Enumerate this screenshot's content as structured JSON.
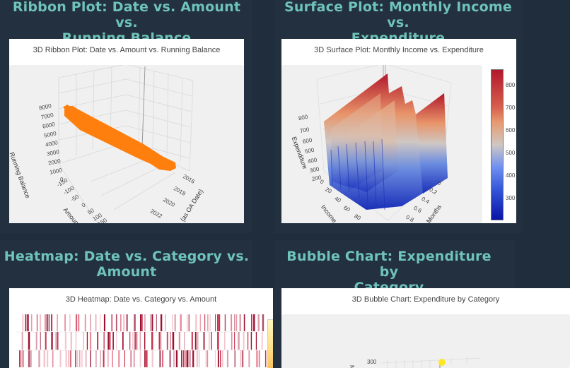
{
  "panels": [
    {
      "heading": "Ribbon Plot: Date vs. Amount vs. Running Balance",
      "heading_lines": [
        "Ribbon Plot: Date vs. Amount vs.",
        "Running Balance"
      ],
      "plot_title": "3D Ribbon Plot: Date vs. Amount vs. Running Balance"
    },
    {
      "heading": "Surface Plot: Monthly Income vs. Expenditure",
      "heading_lines": [
        "Surface Plot: Monthly Income vs.",
        "Expenditure"
      ],
      "plot_title": "3D Surface Plot: Monthly Income vs. Expenditure"
    },
    {
      "heading": "Heatmap: Date vs. Category vs. Amount",
      "heading_lines": [
        "Heatmap: Date vs. Category vs.",
        "Amount"
      ],
      "plot_title": "3D Heatmap: Date vs. Category vs. Amount"
    },
    {
      "heading": "Bubble Chart: Expenditure by Category",
      "heading_lines": [
        "Bubble Chart: Expenditure by",
        "Category"
      ],
      "plot_title": "3D Bubble Chart: Expenditure by Category"
    }
  ],
  "colors": {
    "page_bg": "#1f2d3d",
    "heading": "#6fc3b8",
    "ribbon": "#ff7f0e",
    "bubble": "#fde725"
  },
  "chart_data": [
    {
      "type": "ribbon3d",
      "title": "3D Ribbon Plot: Date vs. Amount vs. Running Balance",
      "axes": {
        "z": {
          "label": "Running Balance",
          "ticks": [
            "0",
            "1000",
            "2000",
            "3000",
            "4000",
            "5000",
            "6000",
            "7000",
            "8000"
          ],
          "range": [
            0,
            8000
          ]
        },
        "y": {
          "label": "Amount",
          "ticks": [
            "-150",
            "-100",
            "-50",
            "0",
            "50",
            "100",
            "150"
          ]
        },
        "x": {
          "label": "Date (as OA Date)",
          "label_visible": "(as OA Date)",
          "ticks": [
            "2016",
            "2018",
            "2020",
            "2022"
          ]
        }
      },
      "series": [
        {
          "name": "Running Balance",
          "color": "#ff7f0e",
          "trend": "decreasing from ~7500 (early) to ~500 (late)"
        }
      ]
    },
    {
      "type": "surface3d",
      "title": "3D Surface Plot: Monthly Income vs. Expenditure",
      "axes": {
        "z": {
          "label": "Expenditure",
          "ticks": [
            "200",
            "300",
            "400",
            "500",
            "600",
            "700",
            "800"
          ]
        },
        "x": {
          "label": "Income",
          "ticks": [
            "0",
            "20",
            "40",
            "60",
            "80"
          ]
        },
        "y": {
          "label": "Months",
          "ticks": [
            "0",
            "0.2",
            "0.4",
            "0.6",
            "0.8"
          ]
        }
      },
      "colorbar": {
        "ticks": [
          "300",
          "400",
          "500",
          "600",
          "700",
          "800"
        ],
        "range": [
          230,
          870
        ],
        "colorscale": "RdBu (blue low, red high)"
      }
    },
    {
      "type": "heatmap",
      "title": "3D Heatmap: Date vs. Category vs. Amount",
      "rows_visible": 3,
      "colorscale": "white to dark red, colorbar yellow-orange (partially visible)"
    },
    {
      "type": "scatter3d",
      "title": "3D Bubble Chart: Expenditure by Category",
      "axes": {
        "z": {
          "label": "Nu...",
          "ticks": [
            "300"
          ]
        }
      },
      "points_visible": [
        {
          "z": 300,
          "color": "#fde725"
        }
      ]
    }
  ],
  "ticks": {
    "ribbon_z": [
      "8000",
      "7000",
      "6000",
      "5000",
      "4000",
      "3000",
      "2000",
      "1000",
      "0"
    ],
    "ribbon_y": [
      "-150",
      "-100",
      "-50",
      "0",
      "50",
      "100",
      "150"
    ],
    "ribbon_x": [
      "2016",
      "2018",
      "2020",
      "2022"
    ],
    "ribbon_z_label": "Running Balance",
    "ribbon_y_label": "Amount",
    "ribbon_x_label": "(as OA Date)",
    "surface_z": [
      "800",
      "700",
      "600",
      "500",
      "400",
      "300",
      "200"
    ],
    "surface_x": [
      "0",
      "20",
      "40",
      "60",
      "80"
    ],
    "surface_y": [
      "0",
      "0.2",
      "0.4",
      "0.6",
      "0.8"
    ],
    "surface_z_label": "Expenditure",
    "surface_x_label": "Income",
    "surface_y_label": "Months",
    "cbar": [
      "800",
      "700",
      "600",
      "500",
      "400",
      "300"
    ],
    "bubble_z": "300",
    "bubble_z_label": "Nu"
  }
}
